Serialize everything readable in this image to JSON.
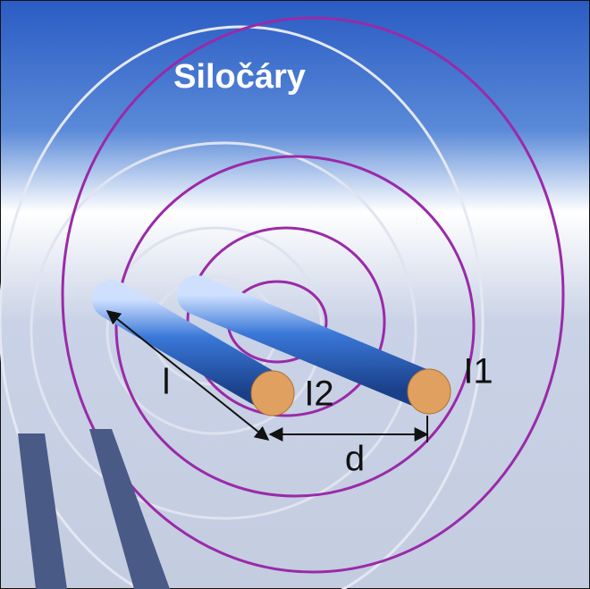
{
  "title": "Siločáry",
  "labels": {
    "length": "l",
    "current2": "I2",
    "current1": "I1",
    "distance": "d"
  }
}
